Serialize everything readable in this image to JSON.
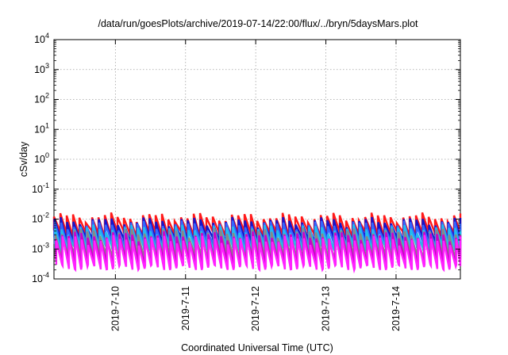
{
  "chart_data": {
    "type": "line",
    "title": "/data/run/goesPlots/archive/2019-07-14/22:00/flux/../bryn/5daysMars.plot",
    "xlabel": "Coordinated Universal Time (UTC)",
    "ylabel": "cSv/day",
    "yscale": "log",
    "ylim": [
      0.0001,
      10000
    ],
    "xlim": [
      "2019-07-09T03:00",
      "2019-07-14T22:00"
    ],
    "grid": true,
    "x_ticks": [
      {
        "label": "2019-7-10",
        "date": "2019-07-10T00:00"
      },
      {
        "label": "2019-7-11",
        "date": "2019-07-11T00:00"
      },
      {
        "label": "2019-7-12",
        "date": "2019-07-12T00:00"
      },
      {
        "label": "2019-7-13",
        "date": "2019-07-13T00:00"
      },
      {
        "label": "2019-7-14",
        "date": "2019-07-14T00:00"
      }
    ],
    "y_ticks": [
      {
        "base": "10",
        "exp": "4",
        "value": 10000
      },
      {
        "base": "10",
        "exp": "3",
        "value": 1000
      },
      {
        "base": "10",
        "exp": "2",
        "value": 100
      },
      {
        "base": "10",
        "exp": "1",
        "value": 10
      },
      {
        "base": "10",
        "exp": "0",
        "value": 1
      },
      {
        "base": "10",
        "exp": "-1",
        "value": 0.1
      },
      {
        "base": "10",
        "exp": "-2",
        "value": 0.01
      },
      {
        "base": "10",
        "exp": "-3",
        "value": 0.001
      },
      {
        "base": "10",
        "exp": "-4",
        "value": 0.0001
      }
    ],
    "periodic_pattern": {
      "start": "2019-07-09T03:00",
      "end": "2019-07-14T22:00",
      "cycles": 64
    },
    "series": [
      {
        "color": "#ff1a1a",
        "high": 0.012,
        "low": 0.0035
      },
      {
        "color": "#1515cc",
        "high": 0.0085,
        "low": 0.0022
      },
      {
        "color": "#3366ff",
        "high": 0.0065,
        "low": 0.0016
      },
      {
        "color": "#22bbee",
        "high": 0.0048,
        "low": 0.0011
      },
      {
        "color": "#888888",
        "high": 0.0036,
        "low": 0.0006
      },
      {
        "color": "#cc00cc",
        "high": 0.0028,
        "low": 0.0004
      },
      {
        "color": "#ff22ff",
        "high": 0.0021,
        "low": 0.00025
      }
    ]
  }
}
